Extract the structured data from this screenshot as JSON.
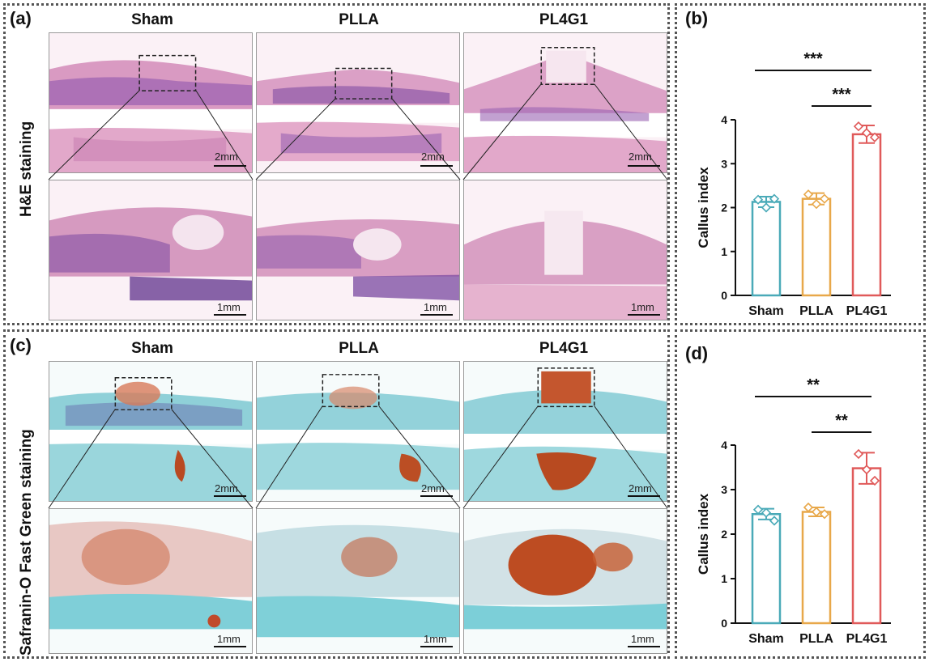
{
  "panels": {
    "a_label": "(a)",
    "b_label": "(b)",
    "c_label": "(c)",
    "d_label": "(d)"
  },
  "groups": [
    "Sham",
    "PLLA",
    "PL4G1"
  ],
  "he_row_label": "H&E staining",
  "sofg_row_label": "Safranin-O Fast Green staining",
  "scale_top": "2mm",
  "scale_bottom": "1mm",
  "colors": {
    "sham": "#4aaab8",
    "plla": "#e8a84a",
    "pl4g1": "#e05a5a"
  },
  "chart_data": [
    {
      "type": "bar",
      "categories": [
        "Sham",
        "PLLA",
        "PL4G1"
      ],
      "values": [
        2.13,
        2.2,
        3.67
      ],
      "errors": [
        0.12,
        0.13,
        0.2
      ],
      "points": [
        [
          2.18,
          2.2,
          2.0
        ],
        [
          2.3,
          2.2,
          2.08
        ],
        [
          3.85,
          3.6,
          3.7
        ]
      ],
      "ylabel": "Callus index",
      "ylim": [
        0,
        4
      ],
      "yticks": [
        0,
        1,
        2,
        3,
        4
      ],
      "significance": [
        {
          "from": 0,
          "to": 2,
          "label": "***"
        },
        {
          "from": 1,
          "to": 2,
          "label": "***"
        }
      ]
    },
    {
      "type": "bar",
      "categories": [
        "Sham",
        "PLLA",
        "PL4G1"
      ],
      "values": [
        2.45,
        2.5,
        3.48
      ],
      "errors": [
        0.12,
        0.1,
        0.35
      ],
      "points": [
        [
          2.55,
          2.3,
          2.48
        ],
        [
          2.6,
          2.45,
          2.5
        ],
        [
          3.8,
          3.2,
          3.45
        ]
      ],
      "ylabel": "Callus index",
      "ylim": [
        0,
        4
      ],
      "yticks": [
        0,
        1,
        2,
        3,
        4
      ],
      "significance": [
        {
          "from": 0,
          "to": 2,
          "label": "**"
        },
        {
          "from": 1,
          "to": 2,
          "label": "**"
        }
      ]
    }
  ]
}
